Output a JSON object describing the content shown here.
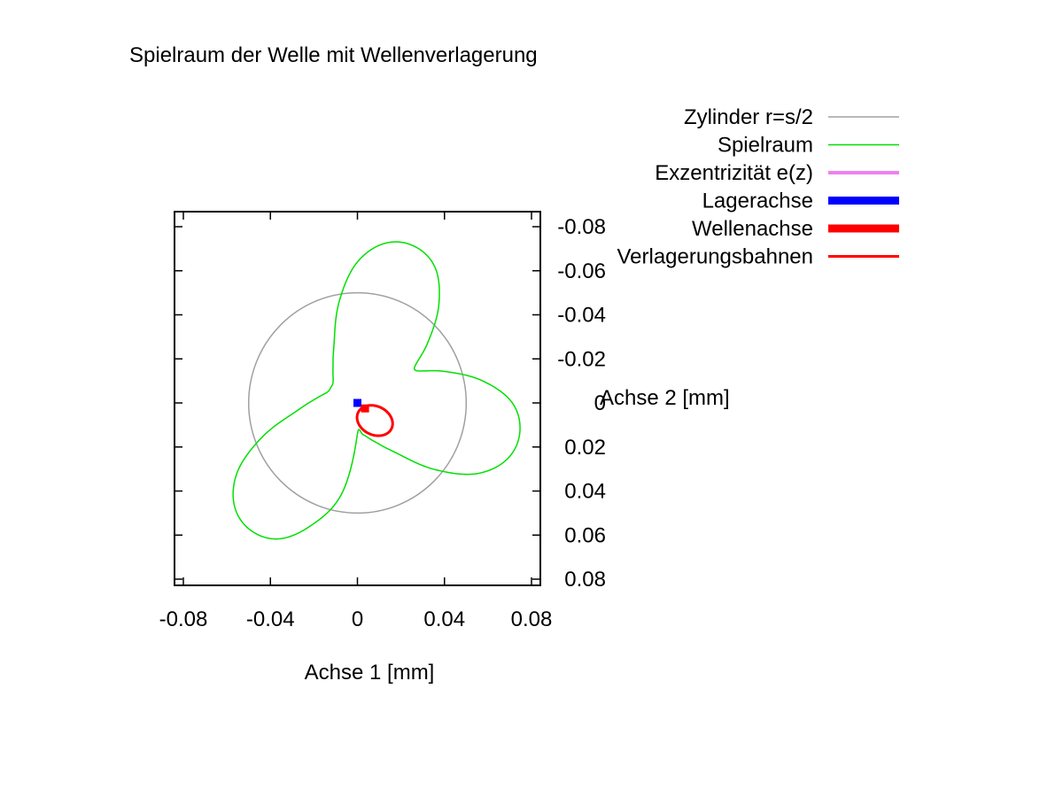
{
  "chart_data": {
    "type": "line",
    "title": "Spielraum der Welle mit Wellenverlagerung",
    "xlabel": "Achse 1 [mm]",
    "ylabel": "Achse 2 [mm]",
    "xlim": [
      -0.08,
      0.08
    ],
    "ylim": [
      -0.08,
      0.08
    ],
    "y_inverted": true,
    "y_axis_side": "right",
    "grid": false,
    "legend_position": "top-right",
    "x_ticks": [
      {
        "value": -0.08,
        "label": "-0.08"
      },
      {
        "value": -0.04,
        "label": "-0.04"
      },
      {
        "value": 0,
        "label": "0"
      },
      {
        "value": 0.04,
        "label": "0.04"
      },
      {
        "value": 0.08,
        "label": "0.08"
      }
    ],
    "y_ticks": [
      {
        "value": -0.08,
        "label": "-0.08"
      },
      {
        "value": -0.06,
        "label": "-0.06"
      },
      {
        "value": -0.04,
        "label": "-0.04"
      },
      {
        "value": -0.02,
        "label": "-0.02"
      },
      {
        "value": 0,
        "label": "0"
      },
      {
        "value": 0.02,
        "label": "0.02"
      },
      {
        "value": 0.04,
        "label": "0.04"
      },
      {
        "value": 0.06,
        "label": "0.06"
      },
      {
        "value": 0.08,
        "label": "0.08"
      }
    ],
    "series": [
      {
        "name": "Zylinder r=s/2",
        "color": "#a0a0a0",
        "legend_line_width": 1.5,
        "kind": "circle",
        "center": [
          0,
          0
        ],
        "radius": 0.05
      },
      {
        "name": "Spielraum",
        "color": "#00e000",
        "legend_line_width": 1.5,
        "kind": "polar",
        "center": [
          0,
          0
        ],
        "angles_deg": [
          0,
          10,
          20,
          30,
          40,
          50,
          60,
          70,
          80,
          90,
          100,
          110,
          120,
          130,
          140,
          150,
          160,
          170,
          180,
          190,
          200,
          210,
          220,
          230,
          240,
          250,
          260,
          270,
          280,
          290,
          300,
          310,
          320,
          330,
          340,
          350
        ],
        "radii": [
          0.0141,
          0.0146,
          0.0175,
          0.0224,
          0.031,
          0.0473,
          0.064,
          0.0736,
          0.0758,
          0.0712,
          0.0582,
          0.042,
          0.0303,
          0.042,
          0.0582,
          0.0712,
          0.0758,
          0.0736,
          0.064,
          0.0473,
          0.031,
          0.0224,
          0.0175,
          0.0146,
          0.0141,
          0.0146,
          0.0175,
          0.0224,
          0.031,
          0.0473,
          0.064,
          0.0736,
          0.0758,
          0.0712,
          0.0582,
          0.042
        ]
      },
      {
        "name": "Exzentrizität e(z)",
        "color": "#ee82ee",
        "legend_line_width": 4,
        "kind": "none"
      },
      {
        "name": "Lagerachse",
        "color": "#0000ff",
        "legend_line_width": 9,
        "kind": "point",
        "x": 0,
        "y": 0
      },
      {
        "name": "Wellenachse",
        "color": "#ff0000",
        "legend_line_width": 9,
        "kind": "point",
        "x": 0.0035,
        "y": 0.0025
      },
      {
        "name": "Verlagerungsbahnen",
        "color": "#ff0000",
        "legend_line_width": 3,
        "kind": "ellipse",
        "center": [
          0.008,
          0.008
        ],
        "radii": [
          0.0085,
          0.0065
        ],
        "rotation_deg": 25
      }
    ]
  }
}
